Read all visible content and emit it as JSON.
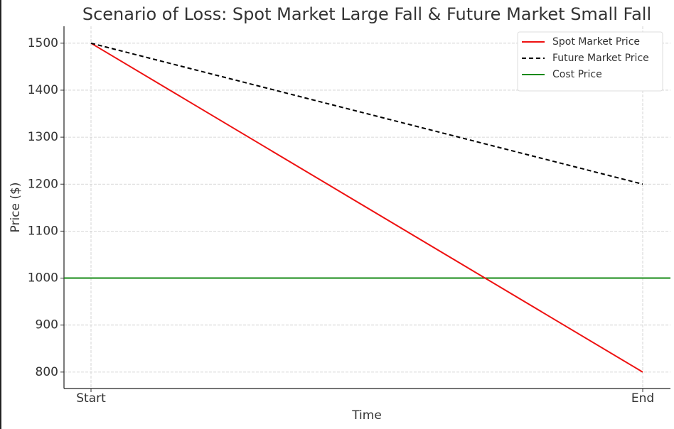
{
  "chart_data": {
    "type": "line",
    "title": "Scenario of Loss: Spot Market Large Fall & Future Market Small Fall",
    "x_label": "Time",
    "y_label": "Price ($)",
    "categories": [
      "Start",
      "End"
    ],
    "series": [
      {
        "name": "Spot Market Price",
        "color": "#ee1111",
        "dash": "solid",
        "values": [
          1500,
          800
        ]
      },
      {
        "name": "Future Market Price",
        "color": "#000000",
        "dash": "dashed",
        "values": [
          1500,
          1200
        ]
      }
    ],
    "hlines": [
      {
        "name": "Cost Price",
        "color": "#168a16",
        "value": 1000
      }
    ],
    "ylim": [
      765,
      1536
    ],
    "yticks": [
      800,
      900,
      1000,
      1100,
      1200,
      1300,
      1400,
      1500
    ],
    "grid": true,
    "legend": "upper right"
  }
}
